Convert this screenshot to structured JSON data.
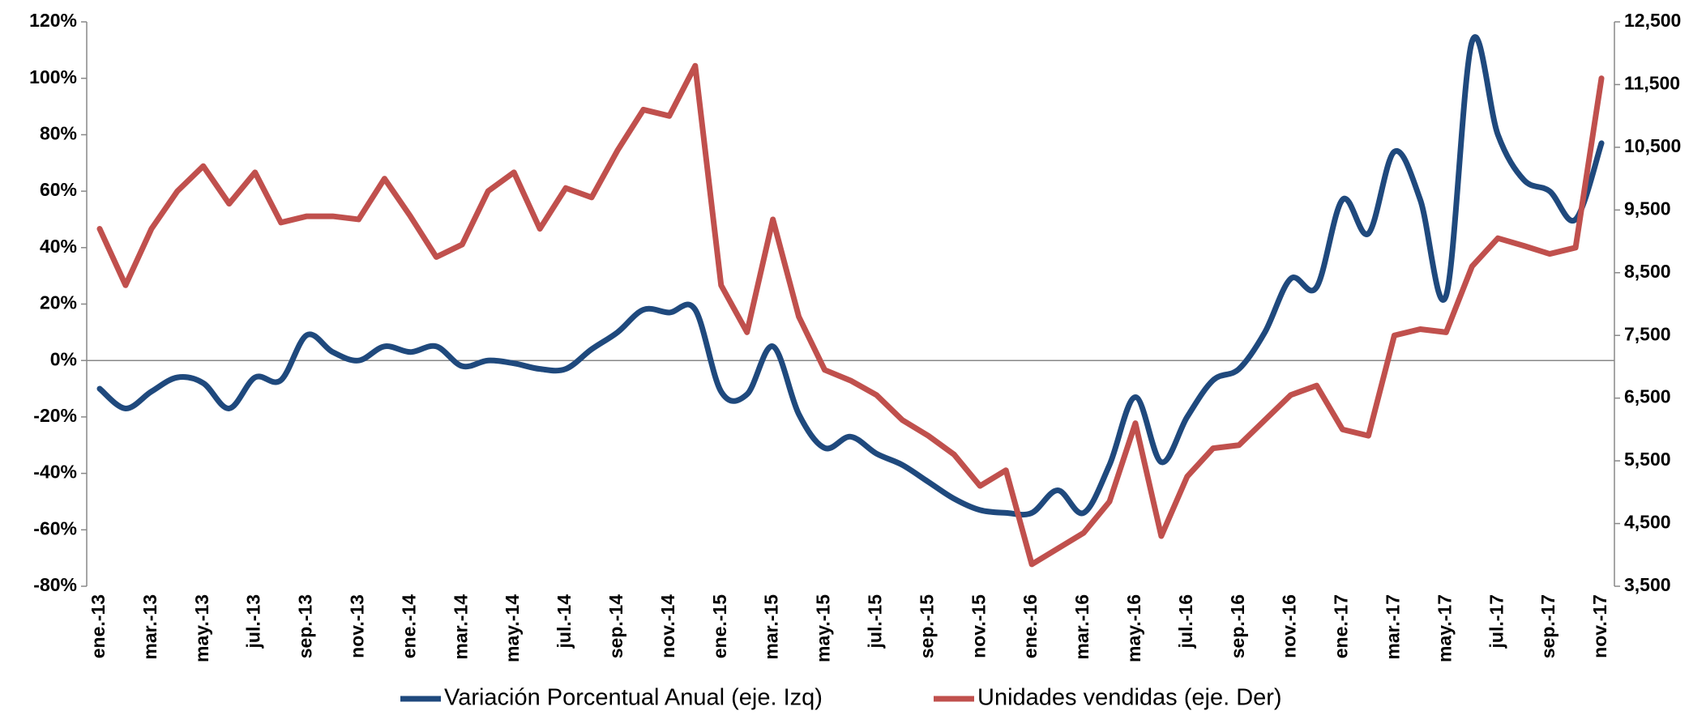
{
  "chart_data": {
    "type": "line",
    "categories": [
      "ene.-13",
      null,
      "mar.-13",
      null,
      "may.-13",
      null,
      "jul.-13",
      null,
      "sep.-13",
      null,
      "nov.-13",
      null,
      "ene.-14",
      null,
      "mar.-14",
      null,
      "may.-14",
      null,
      "jul.-14",
      null,
      "sep.-14",
      null,
      "nov.-14",
      null,
      "ene.-15",
      null,
      "mar.-15",
      null,
      "may.-15",
      null,
      "jul.-15",
      null,
      "sep.-15",
      null,
      "nov.-15",
      null,
      "ene.-16",
      null,
      "mar.-16",
      null,
      "may.-16",
      null,
      "jul.-16",
      null,
      "sep.-16",
      null,
      "nov.-16",
      null,
      "ene.-17",
      null,
      "mar.-17",
      null,
      "may.-17",
      null,
      "jul.-17",
      null,
      "sep.-17",
      null,
      "nov.-17"
    ],
    "series": [
      {
        "name": "Variación Porcentual Anual (eje. Izq)",
        "color": "#1f497d",
        "smooth": true,
        "values": [
          -10,
          -17,
          -11,
          -6,
          -8,
          -17,
          -6,
          -7,
          9,
          3,
          0,
          5,
          3,
          5,
          -2,
          0,
          -1,
          -3,
          -3,
          4,
          10,
          18,
          17,
          18,
          -11,
          -12,
          5,
          -19,
          -31,
          -27,
          -33,
          -37,
          -43,
          -49,
          -53,
          -54,
          -54,
          -46,
          -54,
          -37,
          -13,
          -36,
          -20,
          -7,
          -3,
          10,
          29,
          26,
          57,
          45,
          74,
          57,
          23,
          113,
          80,
          64,
          60,
          50,
          77
        ]
      },
      {
        "name": "Unidades vendidas (eje. Der)",
        "color": "#c0504d",
        "axis": "y2",
        "values": [
          9200,
          8300,
          9200,
          9800,
          10200,
          9600,
          10100,
          9300,
          9400,
          9400,
          9350,
          10000,
          9400,
          8750,
          8950,
          9800,
          10100,
          9200,
          9850,
          9700,
          10450,
          11100,
          11000,
          11800,
          8300,
          7550,
          9350,
          7800,
          6950,
          6780,
          6550,
          6150,
          5900,
          5600,
          5100,
          5350,
          3850,
          4100,
          4350,
          4850,
          6100,
          4300,
          5250,
          5700,
          5750,
          6150,
          6550,
          6700,
          6000,
          5900,
          7500,
          7600,
          7550,
          8600,
          9050,
          8930,
          8800,
          8900,
          11600
        ]
      }
    ],
    "ylim": [
      -80,
      120
    ],
    "yticks": [
      {
        "value": -80,
        "label": "-80%"
      },
      {
        "value": -60,
        "label": "-60%"
      },
      {
        "value": -40,
        "label": "-40%"
      },
      {
        "value": -20,
        "label": "-20%"
      },
      {
        "value": 0,
        "label": "0%"
      },
      {
        "value": 20,
        "label": "20%"
      },
      {
        "value": 40,
        "label": "40%"
      },
      {
        "value": 60,
        "label": "60%"
      },
      {
        "value": 80,
        "label": "80%"
      },
      {
        "value": 100,
        "label": "100%"
      },
      {
        "value": 120,
        "label": "120%"
      }
    ],
    "y2lim": [
      3500,
      12500
    ],
    "y2ticks": [
      {
        "value": 3500,
        "label": "3,500"
      },
      {
        "value": 4500,
        "label": "4,500"
      },
      {
        "value": 5500,
        "label": "5,500"
      },
      {
        "value": 6500,
        "label": "6,500"
      },
      {
        "value": 7500,
        "label": "7,500"
      },
      {
        "value": 8500,
        "label": "8,500"
      },
      {
        "value": 9500,
        "label": "9,500"
      },
      {
        "value": 10500,
        "label": "10,500"
      },
      {
        "value": 11500,
        "label": "11,500"
      },
      {
        "value": 12500,
        "label": "12,500"
      }
    ],
    "grid": false,
    "legend": "bottom"
  }
}
